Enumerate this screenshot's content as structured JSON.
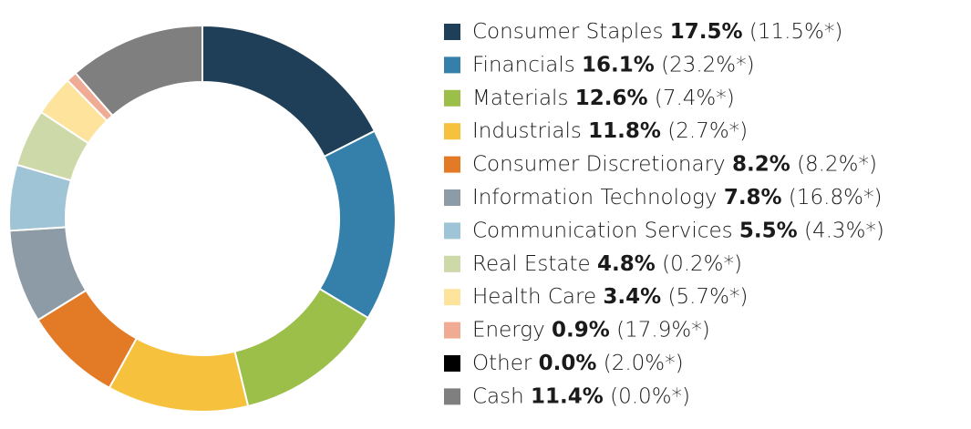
{
  "chart_data": {
    "type": "donut",
    "categories": [
      "Consumer Staples",
      "Financials",
      "Materials",
      "Industrials",
      "Consumer Discretionary",
      "Information Technology",
      "Communication Services",
      "Real Estate",
      "Health Care",
      "Energy",
      "Other",
      "Cash"
    ],
    "values": [
      17.5,
      16.1,
      12.6,
      11.8,
      8.2,
      7.8,
      5.5,
      4.8,
      3.4,
      0.9,
      0.0,
      11.4
    ],
    "value_labels": [
      "17.5%",
      "16.1%",
      "12.6%",
      "11.8%",
      "8.2%",
      "7.8%",
      "5.5%",
      "4.8%",
      "3.4%",
      "0.9%",
      "0.0%",
      "11.4%"
    ],
    "benchmark_labels": [
      "(11.5%*)",
      "(23.2%*)",
      "(7.4%*)",
      "(2.7%*)",
      "(8.2%*)",
      "(16.8%*)",
      "(4.3%*)",
      "(0.2%*)",
      "(5.7%*)",
      "(17.9%*)",
      "(2.0%*)",
      "(0.0%*)"
    ],
    "colors": [
      "#1f3f58",
      "#3580aa",
      "#9cbf4a",
      "#f6c13d",
      "#e37a26",
      "#8c9ba6",
      "#9ec4d6",
      "#cdd9a8",
      "#fde39b",
      "#f0ab94",
      "#000000",
      "#7f7f7f"
    ],
    "legend": "right"
  }
}
